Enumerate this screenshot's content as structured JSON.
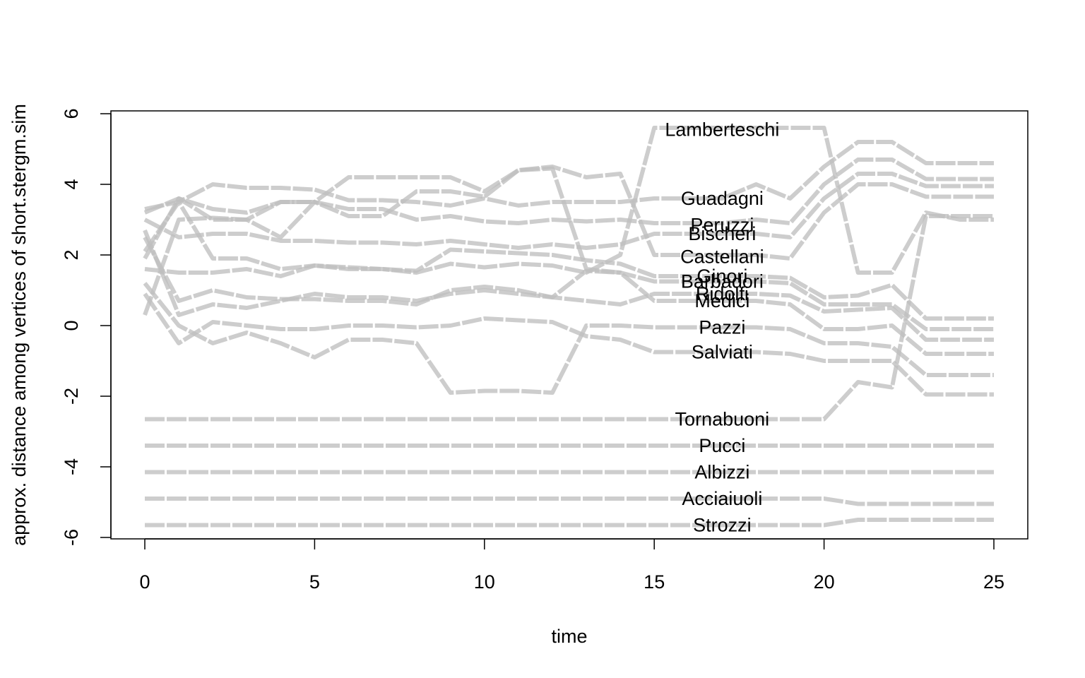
{
  "chart_data": {
    "type": "line",
    "title": "",
    "xlabel": "time",
    "ylabel": "approx. distance among vertices of short.stergm.sim",
    "xlim": [
      0,
      25
    ],
    "ylim": [
      -6,
      6
    ],
    "x_ticks": [
      "0",
      "5",
      "10",
      "15",
      "20",
      "25"
    ],
    "y_ticks": [
      "-6",
      "-4",
      "-2",
      "0",
      "2",
      "4",
      "6"
    ],
    "grid": false,
    "legend": "none",
    "line_color": "#bfbfbf",
    "x": [
      0,
      1,
      2,
      3,
      4,
      5,
      6,
      7,
      8,
      9,
      10,
      11,
      12,
      13,
      14,
      15,
      16,
      17,
      18,
      19,
      20,
      21,
      22,
      23,
      24,
      25
    ],
    "series": [
      {
        "name": "Lamberteschi",
        "label_y": 5.55,
        "values": [
          2.1,
          3.5,
          1.9,
          1.9,
          1.6,
          1.7,
          1.65,
          1.6,
          1.5,
          1.75,
          1.65,
          1.75,
          1.7,
          1.5,
          2.0,
          5.6,
          5.6,
          5.6,
          5.6,
          5.6,
          5.6,
          1.5,
          1.5,
          3.2,
          3.0,
          3.0
        ]
      },
      {
        "name": "Guadagni",
        "label_y": 3.6,
        "values": [
          3.3,
          3.5,
          4.0,
          3.9,
          3.9,
          3.85,
          3.55,
          3.55,
          3.5,
          3.4,
          3.6,
          3.4,
          3.5,
          3.5,
          3.5,
          3.6,
          3.6,
          3.6,
          4.0,
          3.6,
          4.5,
          5.2,
          5.2,
          4.6,
          4.6,
          4.6
        ]
      },
      {
        "name": "Peruzzi",
        "label_y": 2.85,
        "values": [
          3.2,
          3.6,
          3.3,
          3.2,
          3.5,
          3.5,
          3.3,
          3.3,
          3.0,
          3.1,
          2.95,
          2.9,
          3.0,
          2.95,
          3.0,
          2.9,
          2.9,
          2.9,
          3.0,
          2.9,
          4.0,
          4.7,
          4.7,
          4.15,
          4.15,
          4.15
        ]
      },
      {
        "name": "Bischeri",
        "label_y": 2.6,
        "values": [
          3.0,
          2.5,
          2.6,
          2.6,
          2.4,
          2.4,
          2.35,
          2.35,
          2.3,
          2.4,
          2.3,
          2.2,
          2.3,
          2.2,
          2.3,
          2.6,
          2.6,
          2.6,
          2.6,
          2.5,
          3.6,
          4.3,
          4.3,
          3.95,
          3.95,
          3.95
        ]
      },
      {
        "name": "Castellani",
        "label_y": 1.95,
        "values": [
          0.3,
          3.0,
          3.05,
          3.0,
          2.5,
          3.5,
          3.1,
          3.1,
          3.8,
          3.8,
          3.65,
          4.4,
          4.5,
          4.2,
          4.3,
          2.0,
          2.0,
          2.0,
          2.0,
          1.9,
          3.2,
          4.0,
          4.0,
          3.65,
          3.65,
          3.65
        ]
      },
      {
        "name": "Ginori",
        "label_y": 1.4,
        "values": [
          1.6,
          1.5,
          1.5,
          1.6,
          1.4,
          1.7,
          1.6,
          1.6,
          1.55,
          2.15,
          2.1,
          2.05,
          2.0,
          1.85,
          1.75,
          1.4,
          1.4,
          1.4,
          1.4,
          1.35,
          0.8,
          0.85,
          1.15,
          0.2,
          0.2,
          0.2
        ]
      },
      {
        "name": "Barbadori",
        "label_y": 1.25,
        "values": [
          2.5,
          0.7,
          1.0,
          0.8,
          0.75,
          0.75,
          0.7,
          0.7,
          0.6,
          1.0,
          1.1,
          1.0,
          0.8,
          1.55,
          1.5,
          1.25,
          1.25,
          1.25,
          1.25,
          1.2,
          0.6,
          0.6,
          0.6,
          -0.1,
          -0.1,
          -0.1
        ]
      },
      {
        "name": "Ridolfi",
        "label_y": 0.9,
        "values": [
          2.7,
          0.3,
          0.6,
          0.5,
          0.7,
          0.9,
          0.8,
          0.8,
          0.7,
          0.9,
          1.0,
          0.9,
          0.8,
          0.7,
          0.6,
          0.9,
          0.9,
          0.9,
          0.9,
          0.85,
          0.4,
          0.45,
          0.5,
          -0.4,
          -0.4,
          -0.4
        ]
      },
      {
        "name": "Medici",
        "label_y": 0.7,
        "values": [
          1.9,
          3.6,
          3.0,
          3.0,
          3.5,
          3.5,
          4.2,
          4.2,
          4.2,
          4.2,
          3.8,
          4.4,
          4.45,
          1.6,
          1.5,
          0.7,
          0.7,
          0.7,
          0.7,
          0.6,
          -0.1,
          -0.1,
          0.0,
          -0.8,
          -0.8,
          -0.8
        ]
      },
      {
        "name": "Pazzi",
        "label_y": -0.05,
        "values": [
          1.2,
          0.0,
          -0.5,
          -0.2,
          -0.5,
          -0.9,
          -0.4,
          -0.4,
          -0.5,
          -1.9,
          -1.85,
          -1.85,
          -1.9,
          0.0,
          0.0,
          -0.05,
          -0.05,
          -0.05,
          -0.05,
          -0.1,
          -0.5,
          -0.5,
          -0.6,
          -1.4,
          -1.4,
          -1.4
        ]
      },
      {
        "name": "Salviati",
        "label_y": -0.75,
        "values": [
          0.9,
          -0.5,
          0.1,
          0.0,
          -0.1,
          -0.1,
          0.0,
          0.0,
          -0.05,
          0.0,
          0.2,
          0.15,
          0.1,
          -0.3,
          -0.4,
          -0.75,
          -0.75,
          -0.75,
          -0.75,
          -0.8,
          -1.0,
          -1.0,
          -1.0,
          -1.95,
          -1.95,
          -1.95
        ]
      },
      {
        "name": "Tornabuoni",
        "label_y": -2.65,
        "values": [
          -2.65,
          -2.65,
          -2.65,
          -2.65,
          -2.65,
          -2.65,
          -2.65,
          -2.65,
          -2.65,
          -2.65,
          -2.65,
          -2.65,
          -2.65,
          -2.65,
          -2.65,
          -2.65,
          -2.65,
          -2.65,
          -2.65,
          -2.65,
          -2.65,
          -1.6,
          -1.75,
          3.1,
          3.1,
          3.1
        ]
      },
      {
        "name": "Pucci",
        "label_y": -3.4,
        "values": [
          -3.4,
          -3.4,
          -3.4,
          -3.4,
          -3.4,
          -3.4,
          -3.4,
          -3.4,
          -3.4,
          -3.4,
          -3.4,
          -3.4,
          -3.4,
          -3.4,
          -3.4,
          -3.4,
          -3.4,
          -3.4,
          -3.4,
          -3.4,
          -3.4,
          -3.4,
          -3.4,
          -3.4,
          -3.4,
          -3.4
        ]
      },
      {
        "name": "Albizzi",
        "label_y": -4.15,
        "values": [
          -4.15,
          -4.15,
          -4.15,
          -4.15,
          -4.15,
          -4.15,
          -4.15,
          -4.15,
          -4.15,
          -4.15,
          -4.15,
          -4.15,
          -4.15,
          -4.15,
          -4.15,
          -4.15,
          -4.15,
          -4.15,
          -4.15,
          -4.15,
          -4.15,
          -4.15,
          -4.15,
          -4.15,
          -4.15,
          -4.15
        ]
      },
      {
        "name": "Acciaiuoli",
        "label_y": -4.9,
        "values": [
          -4.9,
          -4.9,
          -4.9,
          -4.9,
          -4.9,
          -4.9,
          -4.9,
          -4.9,
          -4.9,
          -4.9,
          -4.9,
          -4.9,
          -4.9,
          -4.9,
          -4.9,
          -4.9,
          -4.9,
          -4.9,
          -4.9,
          -4.9,
          -4.9,
          -5.05,
          -5.05,
          -5.05,
          -5.05,
          -5.05
        ]
      },
      {
        "name": "Strozzi",
        "label_y": -5.65,
        "values": [
          -5.65,
          -5.65,
          -5.65,
          -5.65,
          -5.65,
          -5.65,
          -5.65,
          -5.65,
          -5.65,
          -5.65,
          -5.65,
          -5.65,
          -5.65,
          -5.65,
          -5.65,
          -5.65,
          -5.65,
          -5.65,
          -5.65,
          -5.65,
          -5.65,
          -5.5,
          -5.5,
          -5.5,
          -5.5,
          -5.5
        ]
      }
    ],
    "label_x": 17
  }
}
